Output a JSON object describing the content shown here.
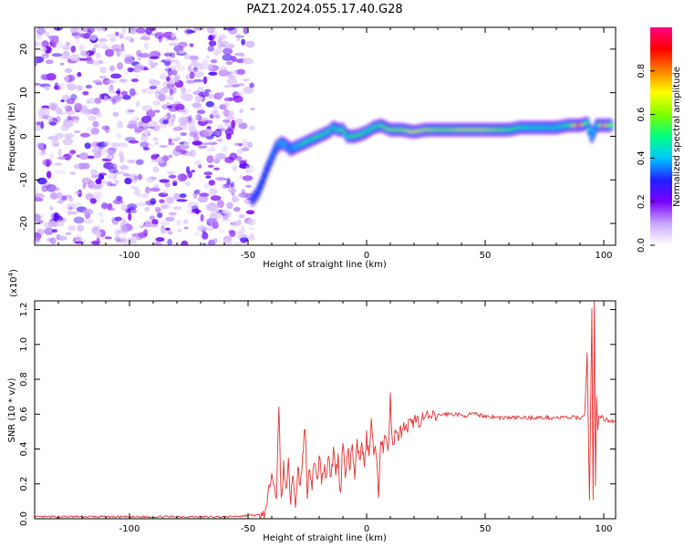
{
  "title": "PAZ1.2024.055.17.40.G28",
  "chart_data": [
    {
      "type": "heatmap",
      "xlabel": "Height of straight line (km)",
      "ylabel": "Frequency (Hz)",
      "xlim": [
        -140,
        105
      ],
      "ylim": [
        -25,
        25
      ],
      "x_ticks": [
        "-100",
        "-50",
        "0",
        "50",
        "100"
      ],
      "y_ticks": [
        "-20",
        "-10",
        "0",
        "10",
        "20"
      ],
      "noise_region": [
        -140,
        -48
      ],
      "ridge": [
        {
          "x": -48,
          "y": -14.5,
          "a": 0.25
        },
        {
          "x": -46,
          "y": -13,
          "a": 0.3
        },
        {
          "x": -44,
          "y": -10.5,
          "a": 0.3
        },
        {
          "x": -42,
          "y": -7.5,
          "a": 0.3
        },
        {
          "x": -40,
          "y": -5,
          "a": 0.35
        },
        {
          "x": -38,
          "y": -2.5,
          "a": 0.35
        },
        {
          "x": -36,
          "y": -1.5,
          "a": 0.4
        },
        {
          "x": -34,
          "y": -2,
          "a": 0.4
        },
        {
          "x": -32,
          "y": -3,
          "a": 0.35
        },
        {
          "x": -30,
          "y": -2.5,
          "a": 0.4
        },
        {
          "x": -28,
          "y": -2,
          "a": 0.45
        },
        {
          "x": -26,
          "y": -1.5,
          "a": 0.5
        },
        {
          "x": -24,
          "y": -1,
          "a": 0.5
        },
        {
          "x": -22,
          "y": -0.5,
          "a": 0.5
        },
        {
          "x": -20,
          "y": 0,
          "a": 0.55
        },
        {
          "x": -18,
          "y": 0.5,
          "a": 0.5
        },
        {
          "x": -16,
          "y": 1,
          "a": 0.5
        },
        {
          "x": -14,
          "y": 2,
          "a": 0.45
        },
        {
          "x": -12,
          "y": 1.5,
          "a": 0.5
        },
        {
          "x": -10,
          "y": 1.5,
          "a": 0.55
        },
        {
          "x": -8,
          "y": 0,
          "a": 0.5
        },
        {
          "x": -5,
          "y": 0,
          "a": 0.55
        },
        {
          "x": -2,
          "y": 0.5,
          "a": 0.55
        },
        {
          "x": 0,
          "y": 1,
          "a": 0.5
        },
        {
          "x": 3,
          "y": 2,
          "a": 0.5
        },
        {
          "x": 6,
          "y": 2.5,
          "a": 0.55
        },
        {
          "x": 10,
          "y": 1.5,
          "a": 0.6
        },
        {
          "x": 15,
          "y": 1.5,
          "a": 0.6
        },
        {
          "x": 20,
          "y": 1,
          "a": 0.7
        },
        {
          "x": 25,
          "y": 1.5,
          "a": 0.65
        },
        {
          "x": 30,
          "y": 1.5,
          "a": 0.6
        },
        {
          "x": 35,
          "y": 1.5,
          "a": 0.6
        },
        {
          "x": 40,
          "y": 1.5,
          "a": 0.65
        },
        {
          "x": 45,
          "y": 1.5,
          "a": 0.65
        },
        {
          "x": 50,
          "y": 1.5,
          "a": 0.65
        },
        {
          "x": 55,
          "y": 1.5,
          "a": 0.6
        },
        {
          "x": 60,
          "y": 1.5,
          "a": 0.55
        },
        {
          "x": 65,
          "y": 2,
          "a": 0.5
        },
        {
          "x": 70,
          "y": 2,
          "a": 0.45
        },
        {
          "x": 75,
          "y": 2,
          "a": 0.45
        },
        {
          "x": 80,
          "y": 2,
          "a": 0.45
        },
        {
          "x": 85,
          "y": 2.5,
          "a": 0.5
        },
        {
          "x": 90,
          "y": 2.5,
          "a": 0.85
        },
        {
          "x": 93,
          "y": 3,
          "a": 0.5
        },
        {
          "x": 95,
          "y": 0,
          "a": 0.4
        },
        {
          "x": 97,
          "y": 2.5,
          "a": 0.4
        },
        {
          "x": 100,
          "y": 2.5,
          "a": 0.8
        },
        {
          "x": 104,
          "y": 2.5,
          "a": 0.5
        }
      ],
      "colorbar": {
        "label": "Normalized spectral amplitude",
        "range": [
          0,
          1
        ],
        "ticks": [
          "0.0",
          "0.2",
          "0.4",
          "0.6",
          "0.8"
        ],
        "stops": [
          "#ffffff",
          "#c9a6ff",
          "#7a00ff",
          "#2020ff",
          "#00c8ff",
          "#00ff80",
          "#80ff00",
          "#ffff00",
          "#ff8000",
          "#ff0000",
          "#ff0080"
        ]
      }
    },
    {
      "type": "line",
      "xlabel": "Height of straight line (km)",
      "ylabel": "SNR (10 * v/v)",
      "y_multiplier": "(x10",
      "y_exponent": "4",
      "xlim": [
        -140,
        105
      ],
      "ylim": [
        0,
        1.25
      ],
      "x_ticks": [
        "-100",
        "-50",
        "0",
        "50",
        "100"
      ],
      "y_ticks": [
        "0.0",
        "0.2",
        "0.4",
        "0.6",
        "0.8",
        "1.0",
        "1.2"
      ],
      "line_color": "#e53030",
      "x": [
        -140,
        -120,
        -100,
        -80,
        -60,
        -48,
        -44,
        -42,
        -40,
        -38,
        -37,
        -36,
        -35,
        -34,
        -33,
        -32,
        -31,
        -30,
        -29,
        -28,
        -27,
        -26,
        -25,
        -24,
        -23,
        -22,
        -21,
        -20,
        -19,
        -18,
        -17,
        -16,
        -15,
        -14,
        -13,
        -12,
        -11,
        -10,
        -9,
        -8,
        -7,
        -6,
        -5,
        -4,
        -3,
        -2,
        -1,
        0,
        1,
        2,
        3,
        4,
        5,
        6,
        7,
        8,
        9,
        10,
        11,
        12,
        13,
        14,
        15,
        16,
        17,
        18,
        19,
        20,
        22,
        24,
        26,
        28,
        30,
        32,
        35,
        38,
        40,
        45,
        50,
        55,
        60,
        65,
        70,
        75,
        80,
        85,
        90,
        92,
        93,
        94,
        95,
        95.5,
        96,
        96.5,
        97,
        97.5,
        98,
        100,
        105
      ],
      "y": [
        0.01,
        0.012,
        0.01,
        0.012,
        0.01,
        0.02,
        0.02,
        0.06,
        0.3,
        0.12,
        0.63,
        0.1,
        0.3,
        0.15,
        0.36,
        0.08,
        0.28,
        0.05,
        0.3,
        0.18,
        0.34,
        0.55,
        0.15,
        0.3,
        0.2,
        0.34,
        0.2,
        0.36,
        0.22,
        0.3,
        0.25,
        0.38,
        0.22,
        0.4,
        0.26,
        0.35,
        0.14,
        0.45,
        0.22,
        0.4,
        0.3,
        0.42,
        0.2,
        0.46,
        0.32,
        0.45,
        0.3,
        0.47,
        0.35,
        0.6,
        0.36,
        0.4,
        0.14,
        0.48,
        0.4,
        0.5,
        0.36,
        0.7,
        0.42,
        0.5,
        0.46,
        0.53,
        0.48,
        0.54,
        0.5,
        0.55,
        0.53,
        0.57,
        0.56,
        0.58,
        0.58,
        0.58,
        0.59,
        0.6,
        0.6,
        0.6,
        0.59,
        0.6,
        0.59,
        0.58,
        0.58,
        0.58,
        0.58,
        0.58,
        0.58,
        0.58,
        0.58,
        0.6,
        0.95,
        0.1,
        1.2,
        0.1,
        1.25,
        0.2,
        0.7,
        0.5,
        0.6,
        0.57,
        0.56
      ]
    }
  ]
}
